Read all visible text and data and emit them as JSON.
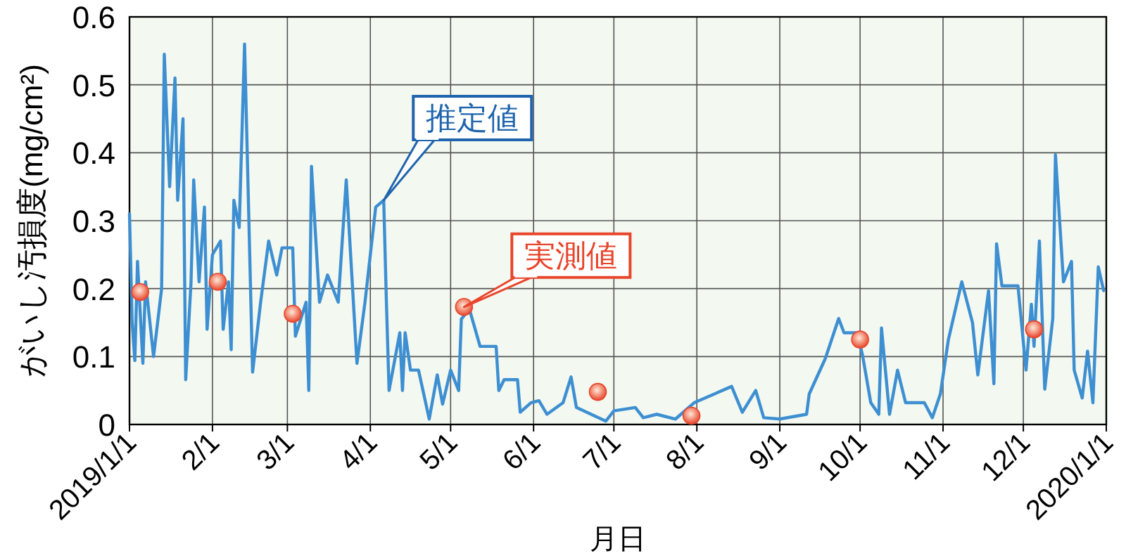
{
  "chart_data": {
    "type": "line",
    "xlabel": "月日",
    "ylabel": "がいし汚損度(mg/cm²)",
    "xlim": [
      "2019-01-01",
      "2020-01-01"
    ],
    "xticks": [
      {
        "value": "2019-01-01",
        "label": "2019/1/1"
      },
      {
        "value": "2019-02-01",
        "label": "2/1"
      },
      {
        "value": "2019-03-01",
        "label": "3/1"
      },
      {
        "value": "2019-04-01",
        "label": "4/1"
      },
      {
        "value": "2019-05-01",
        "label": "5/1"
      },
      {
        "value": "2019-06-01",
        "label": "6/1"
      },
      {
        "value": "2019-07-01",
        "label": "7/1"
      },
      {
        "value": "2019-08-01",
        "label": "8/1"
      },
      {
        "value": "2019-09-01",
        "label": "9/1"
      },
      {
        "value": "2019-10-01",
        "label": "10/1"
      },
      {
        "value": "2019-11-01",
        "label": "11/1"
      },
      {
        "value": "2019-12-01",
        "label": "12/1"
      },
      {
        "value": "2020-01-01",
        "label": "2020/1/1"
      }
    ],
    "ylim": [
      0,
      0.6
    ],
    "yticks": [
      0,
      0.1,
      0.2,
      0.3,
      0.4,
      0.5,
      0.6
    ],
    "grid": true,
    "series": [
      {
        "color": "#3d8fd1",
        "x": [
          "2019-01-01",
          "2019-01-02",
          "2019-01-03",
          "2019-01-04",
          "2019-01-06",
          "2019-01-07",
          "2019-01-10",
          "2019-01-13",
          "2019-01-14",
          "2019-01-16",
          "2019-01-18",
          "2019-01-19",
          "2019-01-21",
          "2019-01-22",
          "2019-01-24",
          "2019-01-25",
          "2019-01-27",
          "2019-01-29",
          "2019-01-30",
          "2019-02-01",
          "2019-02-04",
          "2019-02-05",
          "2019-02-07",
          "2019-02-08",
          "2019-02-09",
          "2019-02-11",
          "2019-02-13",
          "2019-02-16",
          "2019-02-19",
          "2019-02-22",
          "2019-02-25",
          "2019-02-27",
          "2019-03-03",
          "2019-03-04",
          "2019-03-08",
          "2019-03-09",
          "2019-03-10",
          "2019-03-13",
          "2019-03-16",
          "2019-03-20",
          "2019-03-23",
          "2019-03-27",
          "2019-03-30",
          "2019-04-01",
          "2019-04-03",
          "2019-04-06",
          "2019-04-07",
          "2019-04-08",
          "2019-04-12",
          "2019-04-13",
          "2019-04-14",
          "2019-04-16",
          "2019-04-19",
          "2019-04-23",
          "2019-04-26",
          "2019-04-28",
          "2019-05-01",
          "2019-05-04",
          "2019-05-05",
          "2019-05-08",
          "2019-05-12",
          "2019-05-18",
          "2019-05-19",
          "2019-05-21",
          "2019-05-26",
          "2019-05-27",
          "2019-05-31",
          "2019-06-03",
          "2019-06-06",
          "2019-06-12",
          "2019-06-15",
          "2019-06-17",
          "2019-06-28",
          "2019-07-01",
          "2019-07-09",
          "2019-07-12",
          "2019-07-17",
          "2019-07-24",
          "2019-07-31",
          "2019-08-14",
          "2019-08-18",
          "2019-08-23",
          "2019-08-26",
          "2019-09-01",
          "2019-09-11",
          "2019-09-12",
          "2019-09-18",
          "2019-09-23",
          "2019-09-25",
          "2019-09-30",
          "2019-10-02",
          "2019-10-05",
          "2019-10-08",
          "2019-10-09",
          "2019-10-12",
          "2019-10-15",
          "2019-10-18",
          "2019-10-25",
          "2019-10-28",
          "2019-10-31",
          "2019-11-03",
          "2019-11-08",
          "2019-11-12",
          "2019-11-14",
          "2019-11-18",
          "2019-11-20",
          "2019-11-21",
          "2019-11-23",
          "2019-11-29",
          "2019-12-02",
          "2019-12-04",
          "2019-12-05",
          "2019-12-07",
          "2019-12-09",
          "2019-12-12",
          "2019-12-13",
          "2019-12-16",
          "2019-12-19",
          "2019-12-20",
          "2019-12-23",
          "2019-12-25",
          "2019-12-27",
          "2019-12-29",
          "2019-12-31"
        ],
        "values": [
          0.31,
          0.15,
          0.094,
          0.24,
          0.09,
          0.21,
          0.1,
          0.2,
          0.545,
          0.35,
          0.51,
          0.33,
          0.45,
          0.066,
          0.21,
          0.36,
          0.21,
          0.32,
          0.14,
          0.25,
          0.27,
          0.14,
          0.21,
          0.11,
          0.33,
          0.29,
          0.56,
          0.077,
          0.18,
          0.27,
          0.22,
          0.26,
          0.26,
          0.13,
          0.18,
          0.05,
          0.38,
          0.18,
          0.22,
          0.18,
          0.36,
          0.09,
          0.18,
          0.25,
          0.32,
          0.33,
          0.18,
          0.05,
          0.135,
          0.05,
          0.135,
          0.08,
          0.08,
          0.008,
          0.073,
          0.03,
          0.08,
          0.05,
          0.155,
          0.17,
          0.115,
          0.115,
          0.05,
          0.066,
          0.066,
          0.018,
          0.032,
          0.035,
          0.015,
          0.032,
          0.07,
          0.025,
          0.005,
          0.02,
          0.025,
          0.01,
          0.015,
          0.008,
          0.032,
          0.056,
          0.018,
          0.05,
          0.01,
          0.008,
          0.015,
          0.045,
          0.097,
          0.156,
          0.135,
          0.135,
          0.1,
          0.032,
          0.015,
          0.142,
          0.015,
          0.08,
          0.032,
          0.032,
          0.01,
          0.045,
          0.125,
          0.21,
          0.15,
          0.073,
          0.197,
          0.06,
          0.266,
          0.204,
          0.204,
          0.08,
          0.177,
          0.115,
          0.27,
          0.052,
          0.156,
          0.397,
          0.21,
          0.24,
          0.08,
          0.039,
          0.108,
          0.032,
          0.232,
          0.197
        ]
      },
      {
        "type": "scatter",
        "color": "#e8452b",
        "marker": "circle",
        "x": [
          "2019-01-05",
          "2019-02-03",
          "2019-03-03",
          "2019-05-06",
          "2019-06-25",
          "2019-07-30",
          "2019-10-01",
          "2019-12-05"
        ],
        "values": [
          0.195,
          0.21,
          0.163,
          0.173,
          0.048,
          0.013,
          0.125,
          0.14
        ]
      }
    ],
    "annotations": [
      {
        "text": "推定値",
        "x": "2019-04-06",
        "y": 0.33
      },
      {
        "text": "実測値",
        "x": "2019-05-06",
        "y": 0.173
      }
    ]
  }
}
